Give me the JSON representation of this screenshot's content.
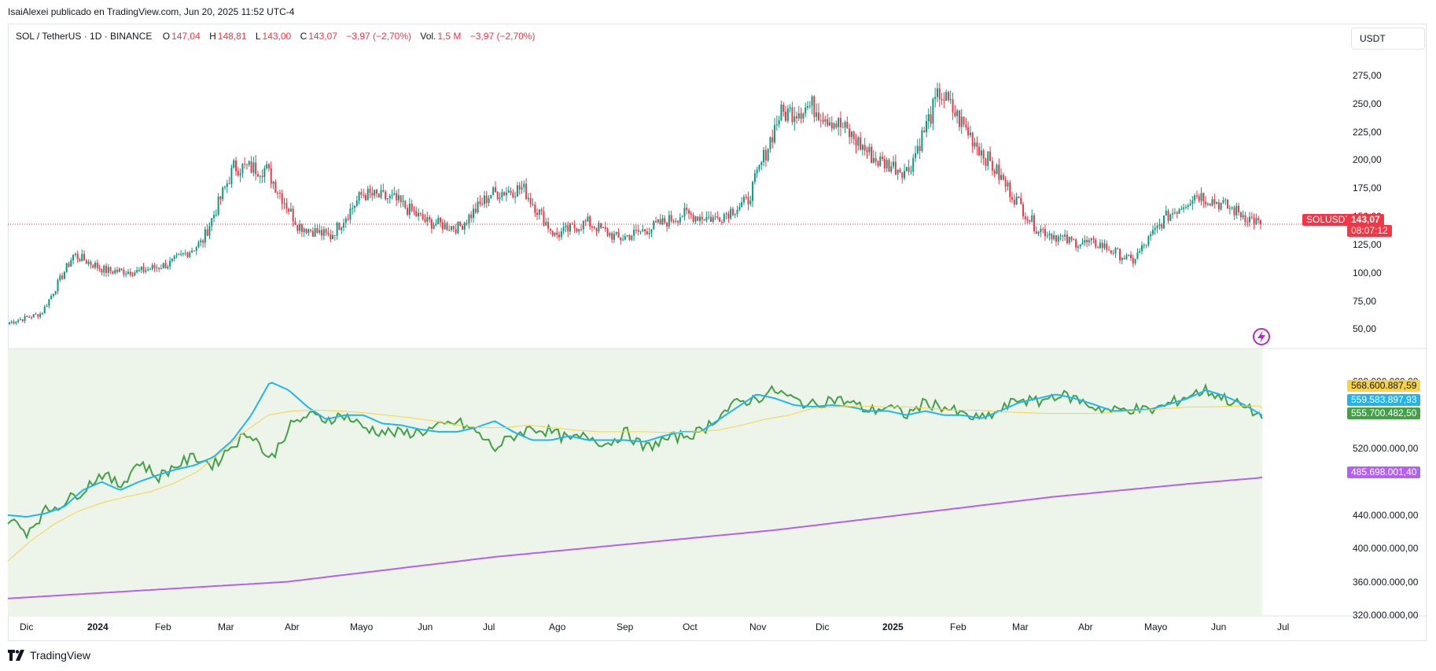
{
  "publisher_line": "IsaiAlexei publicado en TradingView.com, Jun 20, 2025 11:52 UTC-4",
  "legend": {
    "symbol": "SOL / TetherUS · 1D · BINANCE",
    "o_label": "O",
    "o": "147,04",
    "h_label": "H",
    "h": "148,81",
    "l_label": "L",
    "l": "143,00",
    "c_label": "C",
    "c": "143,07",
    "change": "−3,97 (−2,70%)",
    "vol_label": "Vol.",
    "vol": "1,5 M",
    "vol_change": "−3,97 (−2,70%)"
  },
  "currency_button": "USDT",
  "price_tag": {
    "symbol": "SOLUSDT",
    "price": "143,07",
    "countdown": "08:07:12"
  },
  "indicator_tags": [
    {
      "value": "568.600.887,59",
      "color": "#f7d34a"
    },
    {
      "value": "559.583.897,93",
      "color": "#21b5ec"
    },
    {
      "value": "555.700.482,50",
      "color": "#43a047"
    },
    {
      "value": "485.698.001,40",
      "color": "#b45ff5"
    }
  ],
  "footer_brand": "TradingView",
  "icons": {
    "flash": "flash-icon",
    "logo": "tradingview-logo-icon"
  },
  "colors": {
    "up": "#089981",
    "down": "#f23645",
    "pane_bg": "#edf5ea",
    "purple": "#b45ff5"
  },
  "chart_data": [
    {
      "type": "candlestick",
      "title": "SOL / TetherUS · 1D · BINANCE",
      "ylim": [
        35,
        300
      ],
      "y_ticks": [
        "275,00",
        "250,00",
        "225,00",
        "200,00",
        "175,00",
        "150,00",
        "125,00",
        "100,00",
        "75,00",
        "50,00"
      ],
      "x_ticks": [
        "Dic",
        "2024",
        "Feb",
        "Mar",
        "Abr",
        "Mayo",
        "Jun",
        "Jul",
        "Ago",
        "Sep",
        "Oct",
        "Nov",
        "Dic",
        "2025",
        "Feb",
        "Mar",
        "Abr",
        "Mayo",
        "Jun",
        "Jul"
      ],
      "close_anchors": [
        [
          "Dic",
          56
        ],
        [
          "mid-Dic",
          64
        ],
        [
          "2024",
          116
        ],
        [
          "mid-Ene",
          102
        ],
        [
          "Feb",
          101
        ],
        [
          "mid-Feb",
          108
        ],
        [
          "Mar",
          127
        ],
        [
          "mid-Mar",
          194
        ],
        [
          "Abr",
          192
        ],
        [
          "mid-Abr",
          142
        ],
        [
          "Mayo",
          132
        ],
        [
          "mid-May",
          170
        ],
        [
          "Jun",
          165
        ],
        [
          "mid-Jun",
          145
        ],
        [
          "Jul",
          140
        ],
        [
          "mid-Jul",
          170
        ],
        [
          "Ago",
          175
        ],
        [
          "early-Ago",
          133
        ],
        [
          "mid-Ago",
          145
        ],
        [
          "Sep",
          130
        ],
        [
          "mid-Sep",
          140
        ],
        [
          "Oct",
          152
        ],
        [
          "mid-Oct",
          148
        ],
        [
          "Nov",
          163
        ],
        [
          "mid-Nov",
          240
        ],
        [
          "late-Nov",
          248
        ],
        [
          "Dic",
          228
        ],
        [
          "mid-Dic",
          200
        ],
        [
          "2025",
          190
        ],
        [
          "mid-Ene",
          260
        ],
        [
          "Feb",
          220
        ],
        [
          "mid-Feb",
          180
        ],
        [
          "Mar",
          140
        ],
        [
          "mid-Mar",
          128
        ],
        [
          "Abr",
          125
        ],
        [
          "mid-Abr",
          110
        ],
        [
          "Mayo",
          148
        ],
        [
          "mid-May",
          170
        ],
        [
          "Jun",
          158
        ],
        [
          "last",
          143.07
        ]
      ],
      "last_price": 143.07
    },
    {
      "type": "line",
      "pane": "indicator",
      "ylim": [
        320000000,
        640000000
      ],
      "y_ticks": [
        "600.000.000,00",
        "520.000.000,00",
        "440.000.000,00",
        "400.000.000,00",
        "360.000.000,00",
        "320.000.000,00"
      ],
      "series": [
        {
          "color": "#43a047",
          "last": 555700482.5,
          "anchors": [
            436,
            420,
            445,
            455,
            470,
            490,
            475,
            505,
            485,
            500,
            510,
            500,
            525,
            540,
            505,
            545,
            560,
            555,
            560,
            545,
            540,
            538,
            540,
            545,
            552,
            540,
            520,
            535,
            545,
            540,
            530,
            535,
            525,
            540,
            520,
            530,
            535,
            540,
            560,
            575,
            580,
            590,
            578,
            572,
            580,
            575,
            565,
            570,
            560,
            575,
            570,
            560,
            555,
            565,
            580,
            575,
            585,
            580,
            570,
            565,
            568,
            565,
            573,
            583,
            590,
            580,
            570,
            558
          ]
        },
        {
          "color": "#21b5ec",
          "last": 559583897.93,
          "anchors": [
            440,
            438,
            442,
            450,
            470,
            480,
            470,
            480,
            488,
            495,
            500,
            510,
            530,
            560,
            600,
            590,
            570,
            555,
            560,
            560,
            550,
            548,
            543,
            540,
            540,
            545,
            553,
            540,
            530,
            530,
            535,
            530,
            530,
            530,
            528,
            535,
            540,
            540,
            555,
            570,
            585,
            580,
            572,
            570,
            572,
            570,
            565,
            565,
            560,
            565,
            560,
            560,
            556,
            565,
            575,
            580,
            585,
            580,
            573,
            565,
            566,
            567,
            573,
            580,
            590,
            583,
            573,
            560
          ]
        },
        {
          "color": "#f7d34a",
          "last": 568600887.59,
          "anchors": [
            385,
            410,
            430,
            445,
            455,
            462,
            468,
            478,
            492,
            515,
            540,
            560,
            565,
            566,
            565,
            563,
            560,
            557,
            553,
            548,
            545,
            545,
            548,
            545,
            542,
            540,
            540,
            540,
            539,
            540,
            542,
            548,
            555,
            560,
            568,
            570,
            571,
            570,
            570,
            568,
            566,
            566,
            564,
            563,
            562,
            562,
            562,
            564,
            566,
            568,
            570,
            570,
            571,
            571
          ]
        },
        {
          "color": "#b45ff5",
          "last": 485698001.4,
          "anchors": [
            340,
            345,
            350,
            355,
            360,
            370,
            380,
            390,
            398,
            406,
            414,
            422,
            432,
            442,
            452,
            462,
            470,
            478,
            485
          ]
        }
      ]
    }
  ]
}
